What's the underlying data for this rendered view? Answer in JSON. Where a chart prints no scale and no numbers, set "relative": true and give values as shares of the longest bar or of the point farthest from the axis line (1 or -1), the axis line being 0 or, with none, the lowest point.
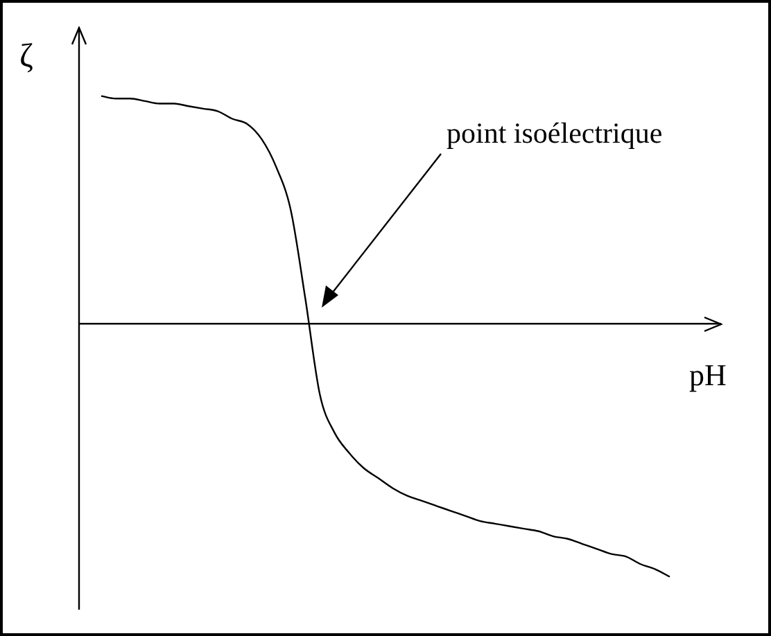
{
  "chart_data": {
    "type": "line",
    "relative": true,
    "xlabel": "pH",
    "ylabel": "ζ",
    "annotations": [
      "point isoélectrique"
    ],
    "color": "#000000",
    "legend": false,
    "marker": "none",
    "line_style": "solid",
    "categories": [
      null,
      null,
      null,
      null,
      null,
      null,
      null,
      null,
      null,
      null,
      null,
      null,
      null,
      null,
      null,
      null,
      null,
      null,
      null,
      null,
      null,
      null,
      null,
      null,
      null,
      null,
      null,
      null,
      null,
      null,
      null,
      null,
      null,
      null,
      null,
      null,
      null,
      null,
      null,
      null
    ],
    "values": [
      0.9,
      0.89,
      0.89,
      0.88,
      0.87,
      0.87,
      0.86,
      0.85,
      0.84,
      0.81,
      0.79,
      0.73,
      0.62,
      0.45,
      0.1,
      -0.28,
      -0.43,
      -0.51,
      -0.57,
      -0.61,
      -0.65,
      -0.68,
      -0.7,
      -0.72,
      -0.74,
      -0.76,
      -0.78,
      -0.79,
      -0.8,
      -0.81,
      -0.82,
      -0.84,
      -0.85,
      -0.87,
      -0.89,
      -0.91,
      -0.92,
      -0.95,
      -0.97,
      -1.0
    ]
  }
}
